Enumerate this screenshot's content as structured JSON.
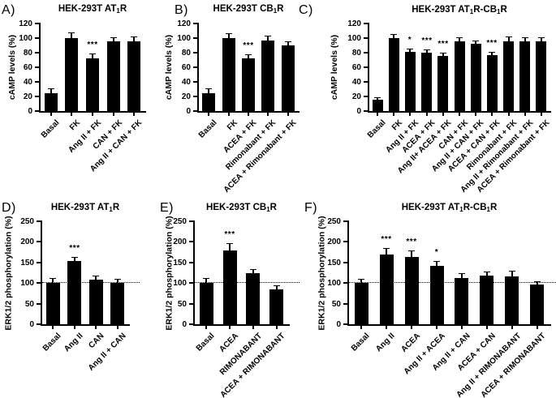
{
  "colors": {
    "background": "#ffffff",
    "bar": "#000000",
    "text": "#000000",
    "error_bar": "#000000"
  },
  "chart_data": [
    {
      "panel_letter": "A)",
      "type": "bar",
      "title": "HEK-293T AT1R",
      "title_segments": [
        {
          "text": "HEK-293T AT"
        },
        {
          "text": "1",
          "sub": true
        },
        {
          "text": "R"
        }
      ],
      "xlabel": "",
      "ylabel": "cAMP levels (%)",
      "ylim": [
        0,
        120
      ],
      "yticks": [
        0,
        20,
        40,
        60,
        80,
        100,
        120
      ],
      "grid": false,
      "legend": null,
      "baseline": null,
      "categories": [
        "Basal",
        "FK",
        "Ang II + FK",
        "CAN + FK",
        "Ang II + CAN + FK"
      ],
      "values": [
        24,
        100,
        72,
        96,
        96
      ],
      "errors": [
        5,
        7,
        5,
        4,
        5
      ],
      "sig": [
        "",
        "",
        "***",
        "",
        ""
      ]
    },
    {
      "panel_letter": "B)",
      "type": "bar",
      "title": "HEK-293T CB1R",
      "title_segments": [
        {
          "text": "HEK-293T CB"
        },
        {
          "text": "1",
          "sub": true
        },
        {
          "text": "R"
        }
      ],
      "xlabel": "",
      "ylabel": "cAMP levels (%)",
      "ylim": [
        0,
        120
      ],
      "yticks": [
        0,
        20,
        40,
        60,
        80,
        100,
        120
      ],
      "grid": false,
      "legend": null,
      "baseline": null,
      "categories": [
        "Basal",
        "FK",
        "ACEA + FK",
        "Rimonabant + FK",
        "ACEA + Rimonabant + FK"
      ],
      "values": [
        24,
        100,
        72,
        97,
        90
      ],
      "errors": [
        5,
        5,
        4,
        5,
        4
      ],
      "sig": [
        "",
        "",
        "***",
        "",
        ""
      ]
    },
    {
      "panel_letter": "C)",
      "type": "bar",
      "title": "HEK-293T AT1R-CB1R",
      "title_segments": [
        {
          "text": "HEK-293T AT"
        },
        {
          "text": "1",
          "sub": true
        },
        {
          "text": "R-CB"
        },
        {
          "text": "1",
          "sub": true
        },
        {
          "text": "R"
        }
      ],
      "xlabel": "",
      "ylabel": "cAMP levels (%)",
      "ylim": [
        0,
        120
      ],
      "yticks": [
        0,
        20,
        40,
        60,
        80,
        100,
        120
      ],
      "grid": false,
      "legend": null,
      "baseline": null,
      "categories": [
        "Basal",
        "FK",
        "Ang II + FK",
        "ACEA + FK",
        "Ang II+ ACEA + FK",
        "CAN + FK",
        "Ang II + CAN + FK",
        "ACEA + CAN + FK",
        "Rimonabant + FK",
        "Ang II + Rimonabant + FK",
        "ACEA + Rimonabant + FK"
      ],
      "values": [
        16,
        100,
        81,
        80,
        76,
        95,
        92,
        77,
        95,
        95,
        96
      ],
      "errors": [
        2,
        4,
        3,
        3,
        3,
        4,
        3,
        3,
        5,
        4,
        4
      ],
      "sig": [
        "",
        "",
        "*",
        "***",
        "***",
        "",
        "",
        "***",
        "",
        "",
        ""
      ]
    },
    {
      "panel_letter": "D)",
      "type": "bar",
      "title": "HEK-293T AT1R",
      "title_segments": [
        {
          "text": "HEK-293T AT"
        },
        {
          "text": "1",
          "sub": true
        },
        {
          "text": "R"
        }
      ],
      "xlabel": "",
      "ylabel": "ERK1/2 phosphorylation (%)",
      "ylim": [
        0,
        250
      ],
      "yticks": [
        0,
        50,
        100,
        150,
        200,
        250
      ],
      "grid": false,
      "legend": null,
      "baseline": 100,
      "categories": [
        "Basal",
        "Ang II",
        "CAN",
        "Ang II + CAN"
      ],
      "values": [
        100,
        154,
        108,
        101
      ],
      "errors": [
        10,
        8,
        7,
        8
      ],
      "sig": [
        "",
        "***",
        "",
        ""
      ]
    },
    {
      "panel_letter": "E)",
      "type": "bar",
      "title": "HEK-293T CB1R",
      "title_segments": [
        {
          "text": "HEK-293T CB"
        },
        {
          "text": "1",
          "sub": true
        },
        {
          "text": "R"
        }
      ],
      "xlabel": "",
      "ylabel": "ERK1/2 phosphorylation (%)",
      "ylim": [
        0,
        250
      ],
      "yticks": [
        0,
        50,
        100,
        150,
        200,
        250
      ],
      "grid": false,
      "legend": null,
      "baseline": 100,
      "categories": [
        "Basal",
        "ACEA",
        "RIMONABANT",
        "ACEA + RIMONABANT"
      ],
      "values": [
        100,
        179,
        124,
        85
      ],
      "errors": [
        10,
        15,
        7,
        7
      ],
      "sig": [
        "",
        "***",
        "",
        ""
      ]
    },
    {
      "panel_letter": "F)",
      "type": "bar",
      "title": "HEK-293T AT1R-CB1R",
      "title_segments": [
        {
          "text": "HEK-293T AT"
        },
        {
          "text": "1",
          "sub": true
        },
        {
          "text": "R-CB"
        },
        {
          "text": "1",
          "sub": true
        },
        {
          "text": "R"
        }
      ],
      "xlabel": "",
      "ylabel": "ERK1/2 phosphorylation (%)",
      "ylim": [
        0,
        250
      ],
      "yticks": [
        0,
        50,
        100,
        150,
        200,
        250
      ],
      "grid": false,
      "legend": null,
      "baseline": 100,
      "categories": [
        "Basal",
        "Ang II",
        "ACEA",
        "Ang II + ACEA",
        "Ang II + CAN",
        "ACEA + CAN",
        "Ang II + RIMONABANT",
        "ACEA + RIMONABANT"
      ],
      "values": [
        100,
        170,
        163,
        141,
        112,
        118,
        117,
        96
      ],
      "errors": [
        8,
        13,
        14,
        10,
        10,
        8,
        12,
        6
      ],
      "sig": [
        "",
        "***",
        "***",
        "*",
        "",
        "",
        "",
        ""
      ]
    }
  ]
}
